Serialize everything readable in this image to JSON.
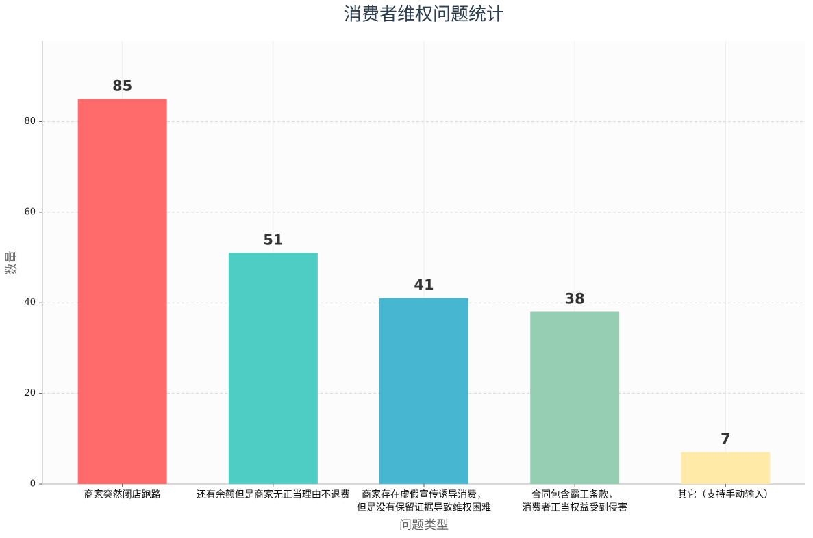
{
  "chart_data": {
    "type": "bar",
    "title": "消费者维权问题统计",
    "x_label": "问题类型",
    "y_label": "数量",
    "categories": [
      "商家突然闭店跑路",
      "还有余额但是商家无正当理由不退费",
      "商家存在虚假宣传诱导消费，\n但是没有保留证据导致维权困难",
      "合同包含霸王条款，\n消费者正当权益受到侵害",
      "其它（支持手动输入）"
    ],
    "values": [
      85,
      51,
      41,
      38,
      7
    ],
    "colors": [
      "#ff6b6b",
      "#4ecdc4",
      "#45b7d1",
      "#96ceb4",
      "#ffeaa7"
    ],
    "ylim": [
      0,
      97.75
    ],
    "yticks": [
      0,
      20,
      40,
      60,
      80
    ],
    "grid": true
  }
}
